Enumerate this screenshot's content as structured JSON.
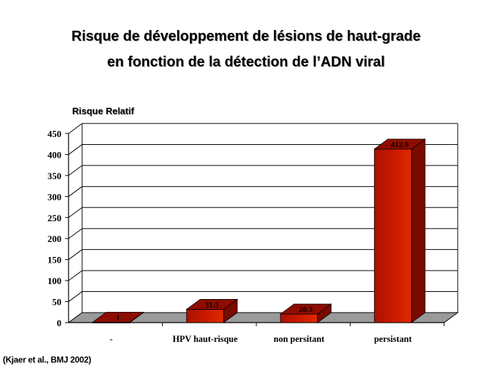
{
  "slide": {
    "title_line1": "Risque de développement de lésions de haut-grade",
    "title_line2": "en fonction de la détection de l’ADN viral",
    "citation": "(Kjaer et al., BMJ 2002)"
  },
  "colors": {
    "bar_front": "#cc1a00",
    "bar_side": "#7a0a00",
    "bar_top": "#8e0d00",
    "floor": "#9a9a9a",
    "grid": "#000000"
  },
  "chart_data": {
    "type": "bar",
    "title": "",
    "ylabel": "Risque Relatif",
    "xlabel": "",
    "categories": [
      "-",
      "HPV haut-risque",
      "non persitant",
      "persistant"
    ],
    "values": [
      1,
      31.5,
      20.3,
      412.9
    ],
    "value_labels": [
      "1",
      "31.5",
      "20.3",
      "412.9"
    ],
    "ylim": [
      0,
      450
    ],
    "yticks": [
      0,
      50,
      100,
      150,
      200,
      250,
      300,
      350,
      400,
      450
    ],
    "grid": true,
    "legend": "none",
    "style": "3d"
  }
}
